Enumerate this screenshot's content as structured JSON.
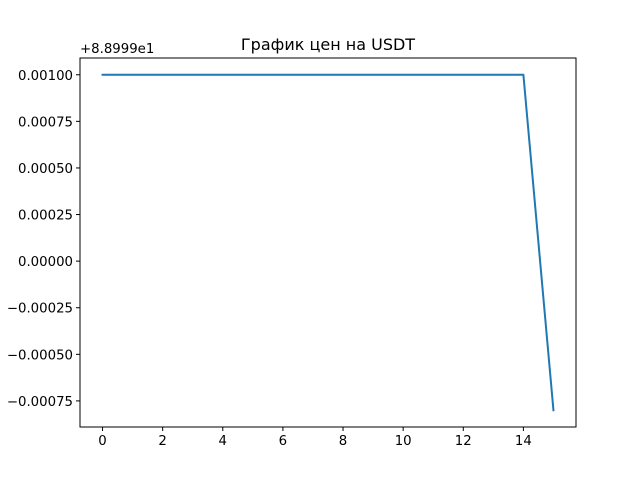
{
  "chart_data": {
    "type": "line",
    "title": "График цен на USDT",
    "xlabel": "",
    "ylabel": "",
    "y_offset_label": "+8.8999e1",
    "xlim": [
      -0.75,
      15.75
    ],
    "ylim": [
      -0.00089,
      0.00109
    ],
    "x_ticks": [
      0,
      2,
      4,
      6,
      8,
      10,
      12,
      14
    ],
    "x_tick_labels": [
      "0",
      "2",
      "4",
      "6",
      "8",
      "10",
      "12",
      "14"
    ],
    "y_ticks": [
      -0.00075,
      -0.0005,
      -0.00025,
      0.0,
      0.00025,
      0.0005,
      0.00075,
      0.001
    ],
    "y_tick_labels": [
      "−0.00075",
      "−0.00050",
      "−0.00025",
      "0.00000",
      "0.00025",
      "0.00050",
      "0.00075",
      "0.00100"
    ],
    "grid": false,
    "series": [
      {
        "color": "#1f77b4",
        "x": [
          0,
          1,
          2,
          3,
          4,
          5,
          6,
          7,
          8,
          9,
          10,
          11,
          12,
          13,
          14,
          15
        ],
        "y": [
          0.001,
          0.001,
          0.001,
          0.001,
          0.001,
          0.001,
          0.001,
          0.001,
          0.001,
          0.001,
          0.001,
          0.001,
          0.001,
          0.001,
          0.001,
          -0.0008
        ]
      }
    ]
  }
}
